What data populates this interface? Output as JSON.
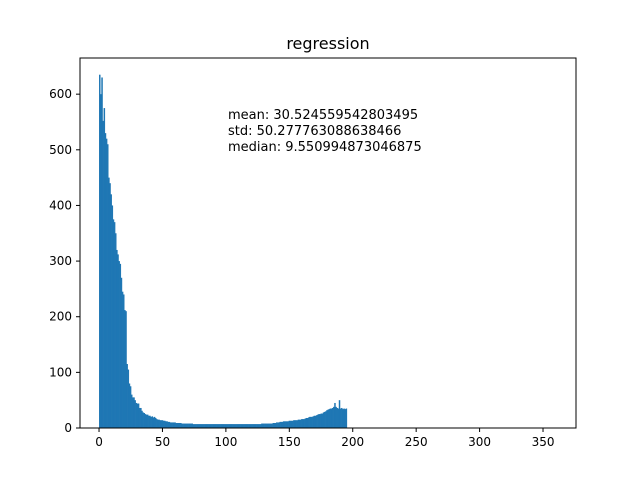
{
  "chart_data": {
    "type": "histogram",
    "title": "regression",
    "xlabel": "",
    "ylabel": "",
    "xlim": [
      -15.0,
      376.0
    ],
    "ylim": [
      0,
      665
    ],
    "bin_start": 0.0,
    "bin_width": 0.9,
    "xticks": [
      0,
      50,
      100,
      150,
      200,
      250,
      300,
      350
    ],
    "yticks": [
      0,
      100,
      200,
      300,
      400,
      500,
      600
    ],
    "bar_color": "#1f77b4",
    "annotations": [
      "mean: 30.524559542803495",
      "std: 50.277763088638466",
      "median: 9.550994873046875"
    ],
    "values": [
      635,
      600,
      630,
      552,
      575,
      530,
      520,
      510,
      450,
      440,
      420,
      400,
      375,
      370,
      350,
      320,
      312,
      300,
      295,
      270,
      245,
      240,
      212,
      210,
      115,
      105,
      80,
      75,
      60,
      55,
      55,
      50,
      45,
      44,
      44,
      36,
      36,
      31,
      28,
      27,
      25,
      24,
      24,
      22,
      22,
      20,
      21,
      19,
      20,
      18,
      16,
      15,
      15,
      14,
      14,
      14,
      13,
      13,
      12,
      12,
      11,
      11,
      10,
      10,
      10,
      10,
      10,
      9,
      9,
      9,
      9,
      9,
      8,
      8,
      8,
      8,
      8,
      8,
      8,
      8,
      8,
      8,
      7,
      7,
      7,
      7,
      7,
      7,
      7,
      7,
      7,
      7,
      7,
      7,
      7,
      7,
      7,
      7,
      7,
      7,
      7,
      7,
      7,
      7,
      7,
      7,
      7,
      7,
      7,
      7,
      7,
      7,
      7,
      7,
      7,
      7,
      7,
      7,
      7,
      7,
      7,
      7,
      7,
      7,
      7,
      7,
      7,
      7,
      7,
      7,
      7,
      7,
      7,
      7,
      7,
      7,
      7,
      7,
      7,
      7,
      7,
      7,
      8,
      8,
      8,
      8,
      8,
      8,
      8,
      8,
      8,
      8,
      9,
      9,
      9,
      10,
      10,
      10,
      11,
      11,
      11,
      12,
      12,
      12,
      12,
      12,
      13,
      13,
      13,
      13,
      14,
      14,
      14,
      14,
      15,
      15,
      15,
      16,
      16,
      16,
      17,
      18,
      18,
      19,
      20,
      20,
      20,
      21,
      22,
      22,
      23,
      24,
      25,
      25,
      26,
      26,
      28,
      29,
      30,
      32,
      33,
      34,
      35,
      35,
      36,
      38,
      45,
      38,
      36,
      35,
      50,
      35,
      36,
      34,
      35,
      34,
      35
    ]
  }
}
